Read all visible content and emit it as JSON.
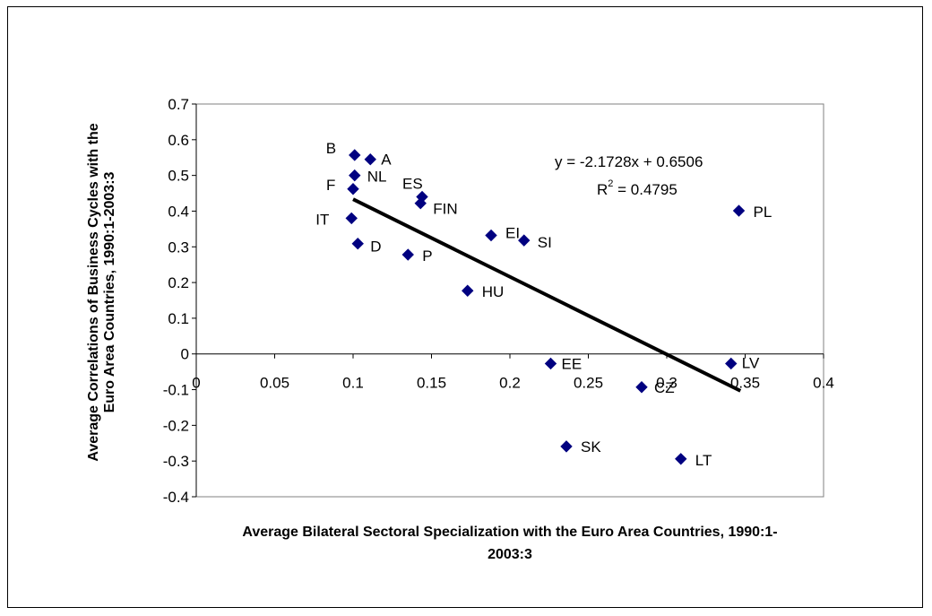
{
  "chart_data": {
    "type": "scatter",
    "xlabel_lines": [
      "Average Bilateral Sectoral Specialization with the Euro Area Countries, 1990:1-",
      "2003:3"
    ],
    "ylabel_lines": [
      "Average Correlations of Business Cycles with the",
      "Euro Area  Countries, 1990:1-2003:3"
    ],
    "xlim": [
      0,
      0.4
    ],
    "ylim": [
      -0.4,
      0.7
    ],
    "x_ticks": [
      0,
      0.05,
      0.1,
      0.15,
      0.2,
      0.25,
      0.3,
      0.35,
      0.4
    ],
    "x_tick_labels": [
      "0",
      "0.05",
      "0.1",
      "0.15",
      "0.2",
      "0.25",
      "0.3",
      "0.35",
      "0.4"
    ],
    "y_ticks": [
      -0.4,
      -0.3,
      -0.2,
      -0.1,
      0,
      0.1,
      0.2,
      0.3,
      0.4,
      0.5,
      0.6,
      0.7
    ],
    "y_tick_labels": [
      "-0.4",
      "-0.3",
      "-0.2",
      "-0.1",
      "0",
      "0.1",
      "0.2",
      "0.3",
      "0.4",
      "0.5",
      "0.6",
      "0.7"
    ],
    "marker_color": "#000080",
    "points": [
      {
        "label": "B",
        "x": 0.101,
        "y": 0.557
      },
      {
        "label": "A",
        "x": 0.111,
        "y": 0.545
      },
      {
        "label": "NL",
        "x": 0.101,
        "y": 0.5
      },
      {
        "label": "F",
        "x": 0.1,
        "y": 0.462
      },
      {
        "label": "ES",
        "x": 0.144,
        "y": 0.44
      },
      {
        "label": "FIN",
        "x": 0.143,
        "y": 0.422
      },
      {
        "label": "IT",
        "x": 0.099,
        "y": 0.38
      },
      {
        "label": "D",
        "x": 0.103,
        "y": 0.309
      },
      {
        "label": "P",
        "x": 0.135,
        "y": 0.278
      },
      {
        "label": "EI",
        "x": 0.188,
        "y": 0.332
      },
      {
        "label": "SI",
        "x": 0.209,
        "y": 0.318
      },
      {
        "label": "HU",
        "x": 0.173,
        "y": 0.177
      },
      {
        "label": "PL",
        "x": 0.346,
        "y": 0.401
      },
      {
        "label": "EE",
        "x": 0.226,
        "y": -0.027
      },
      {
        "label": "LV",
        "x": 0.341,
        "y": -0.027
      },
      {
        "label": "CZ",
        "x": 0.284,
        "y": -0.093
      },
      {
        "label": "SK",
        "x": 0.236,
        "y": -0.259
      },
      {
        "label": "LT",
        "x": 0.309,
        "y": -0.294
      }
    ],
    "trendline": {
      "slope": -2.1728,
      "intercept": 0.6506,
      "x_start": 0.1,
      "x_end": 0.347,
      "equation_text": "y = -2.1728x + 0.6506",
      "r2_prefix": "R",
      "r2_sup": "2",
      "r2_value_text": " = 0.4795"
    },
    "grid": false
  }
}
